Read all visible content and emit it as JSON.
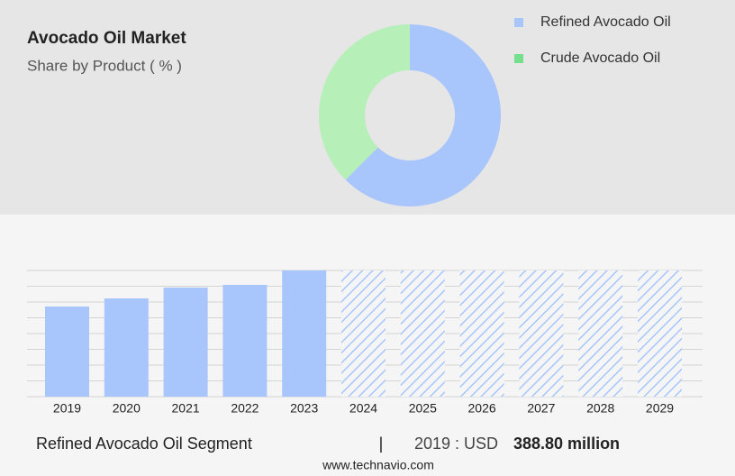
{
  "chart_data": [
    {
      "type": "pie",
      "title": "Avocado Oil Market",
      "subtitle": "Share by Product ( % )",
      "categories": [
        "Refined Avocado Oil",
        "Crude Avocado Oil"
      ],
      "values": [
        62.5,
        37.5
      ],
      "colors": [
        "#a8c6fb",
        "#b6efb8"
      ],
      "legend_colors": [
        "#a8c6fb",
        "#74df8c"
      ],
      "donut": true
    },
    {
      "type": "bar",
      "categories": [
        "2019",
        "2020",
        "2021",
        "2022",
        "2023",
        "2024",
        "2025",
        "2026",
        "2027",
        "2028",
        "2029"
      ],
      "values": [
        388.8,
        423.8,
        470.4,
        482.1,
        544.3,
        null,
        null,
        null,
        null,
        null,
        null
      ],
      "color": "#a8c6fb",
      "ylim": [
        0,
        544.3
      ],
      "grid": true
    }
  ],
  "footer": {
    "segment": "Refined Avocado Oil Segment",
    "separator": "|",
    "year_label": "2019 : USD",
    "value_label": "388.80 million"
  },
  "source": "www.technavio.com"
}
